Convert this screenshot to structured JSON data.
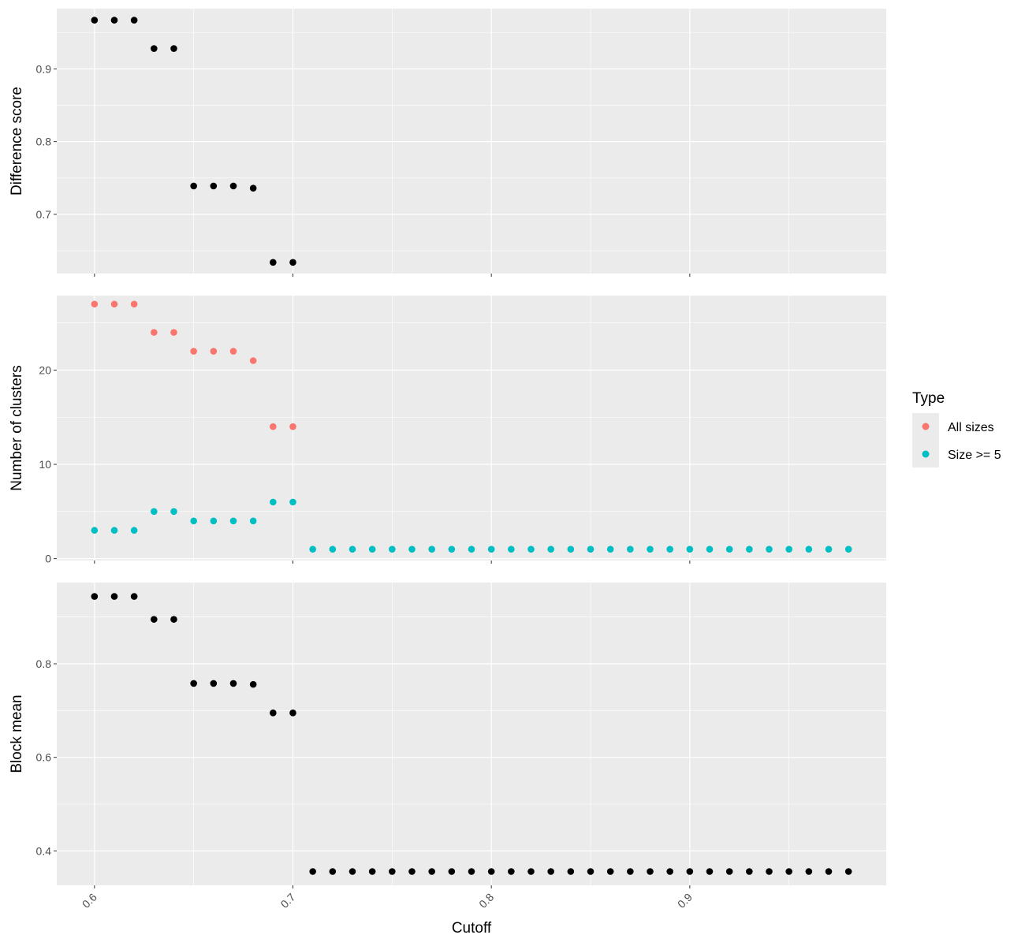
{
  "chart_data": {
    "type": "scatter",
    "xlabel": "Cutoff",
    "xlim": [
      0.581,
      0.999
    ],
    "x_ticks": [
      0.6,
      0.7,
      0.8,
      0.9
    ],
    "x_tick_labels": [
      "0.6",
      "0.7",
      "0.8",
      "0.9"
    ],
    "grid": true,
    "colors": {
      "panel_bg": "#ebebeb",
      "grid": "#ffffff",
      "points": "#000000",
      "all_sizes": "#f8766d",
      "size_ge_5": "#00bfc4"
    },
    "legend": {
      "title": "Type",
      "position": "right",
      "entries": [
        {
          "label": "All sizes",
          "color": "#f8766d"
        },
        {
          "label": "Size >= 5",
          "color": "#00bfc4"
        }
      ]
    },
    "panels": [
      {
        "ylabel": "Difference score",
        "ylim": [
          0.6186,
          0.9828
        ],
        "y_ticks": [
          0.7,
          0.8,
          0.9
        ],
        "y_tick_labels": [
          "0.7",
          "0.8",
          "0.9"
        ],
        "series": [
          {
            "color": "#000000",
            "x": [
              0.6,
              0.61,
              0.62,
              0.63,
              0.64,
              0.65,
              0.66,
              0.67,
              0.68,
              0.69,
              0.7
            ],
            "y": [
              0.967,
              0.967,
              0.967,
              0.928,
              0.928,
              0.739,
              0.739,
              0.739,
              0.736,
              0.634,
              0.634
            ]
          }
        ]
      },
      {
        "ylabel": "Number of clusters",
        "ylim": [
          -0.2,
          27.9
        ],
        "y_ticks": [
          0,
          10,
          20
        ],
        "y_tick_labels": [
          "0",
          "10",
          "20"
        ],
        "series": [
          {
            "name": "All sizes",
            "color": "#f8766d",
            "x": [
              0.6,
              0.61,
              0.62,
              0.63,
              0.64,
              0.65,
              0.66,
              0.67,
              0.68,
              0.69,
              0.7
            ],
            "y": [
              27,
              27,
              27,
              24,
              24,
              22,
              22,
              22,
              21,
              14,
              14
            ]
          },
          {
            "name": "Size >= 5",
            "color": "#00bfc4",
            "x": [
              0.6,
              0.61,
              0.62,
              0.63,
              0.64,
              0.65,
              0.66,
              0.67,
              0.68,
              0.69,
              0.7,
              0.71,
              0.72,
              0.73,
              0.74,
              0.75,
              0.76,
              0.77,
              0.78,
              0.79,
              0.8,
              0.81,
              0.82,
              0.83,
              0.84,
              0.85,
              0.86,
              0.87,
              0.88,
              0.89,
              0.9,
              0.91,
              0.92,
              0.93,
              0.94,
              0.95,
              0.96,
              0.97,
              0.98
            ],
            "y": [
              3,
              3,
              3,
              5,
              5,
              4,
              4,
              4,
              4,
              6,
              6,
              1,
              1,
              1,
              1,
              1,
              1,
              1,
              1,
              1,
              1,
              1,
              1,
              1,
              1,
              1,
              1,
              1,
              1,
              1,
              1,
              1,
              1,
              1,
              1,
              1,
              1,
              1,
              1
            ]
          }
        ]
      },
      {
        "ylabel": "Block mean",
        "ylim": [
          0.3265,
          0.9736
        ],
        "y_ticks": [
          0.4,
          0.6,
          0.8
        ],
        "y_tick_labels": [
          "0.4",
          "0.6",
          "0.8"
        ],
        "series": [
          {
            "color": "#000000",
            "x": [
              0.6,
              0.61,
              0.62,
              0.63,
              0.64,
              0.65,
              0.66,
              0.67,
              0.68,
              0.69,
              0.7,
              0.71,
              0.72,
              0.73,
              0.74,
              0.75,
              0.76,
              0.77,
              0.78,
              0.79,
              0.8,
              0.81,
              0.82,
              0.83,
              0.84,
              0.85,
              0.86,
              0.87,
              0.88,
              0.89,
              0.9,
              0.91,
              0.92,
              0.93,
              0.94,
              0.95,
              0.96,
              0.97,
              0.98
            ],
            "y": [
              0.944,
              0.944,
              0.944,
              0.895,
              0.895,
              0.758,
              0.758,
              0.758,
              0.756,
              0.695,
              0.695,
              0.356,
              0.356,
              0.356,
              0.356,
              0.356,
              0.356,
              0.356,
              0.356,
              0.356,
              0.356,
              0.356,
              0.356,
              0.356,
              0.356,
              0.356,
              0.356,
              0.356,
              0.356,
              0.356,
              0.356,
              0.356,
              0.356,
              0.356,
              0.356,
              0.356,
              0.356,
              0.356,
              0.356
            ]
          }
        ]
      }
    ]
  }
}
